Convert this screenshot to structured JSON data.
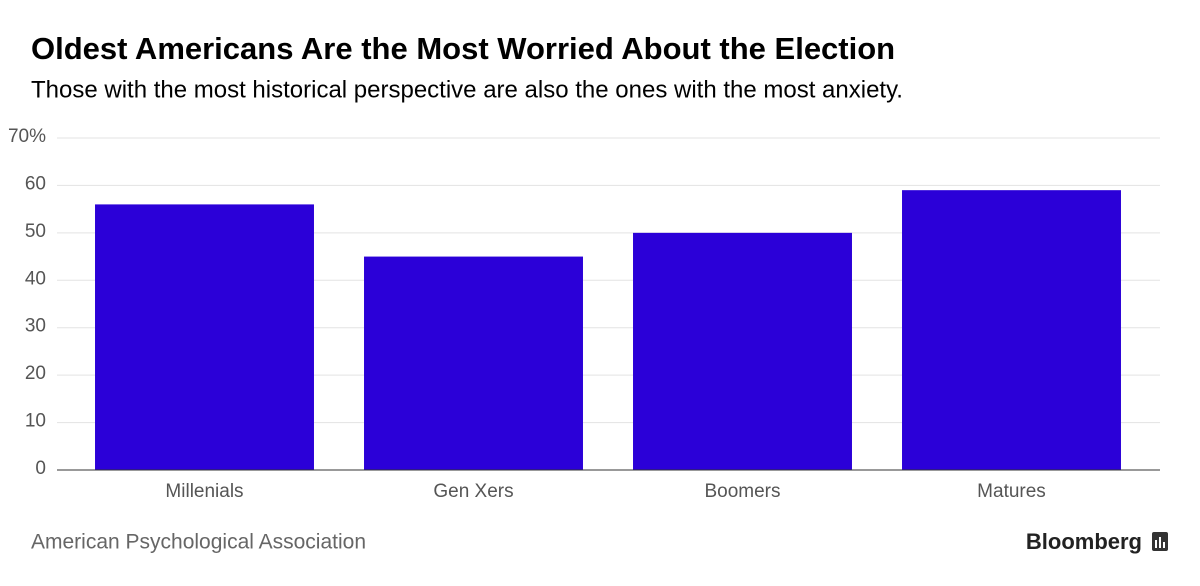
{
  "chart_data": {
    "type": "bar",
    "title": "Oldest Americans Are the Most Worried About the Election",
    "subtitle": "Those with the most historical perspective are also the ones with the most anxiety.",
    "categories": [
      "Millenials",
      "Gen Xers",
      "Boomers",
      "Matures"
    ],
    "values": [
      56,
      45,
      50,
      59
    ],
    "color": "#2b00d8",
    "ylim": [
      0,
      70
    ],
    "yticks": [
      0,
      10,
      20,
      30,
      40,
      50,
      60,
      {
        "value": 70,
        "label": "70%"
      }
    ],
    "grid": true,
    "source": "American Psychological Association",
    "brand": "Bloomberg"
  }
}
